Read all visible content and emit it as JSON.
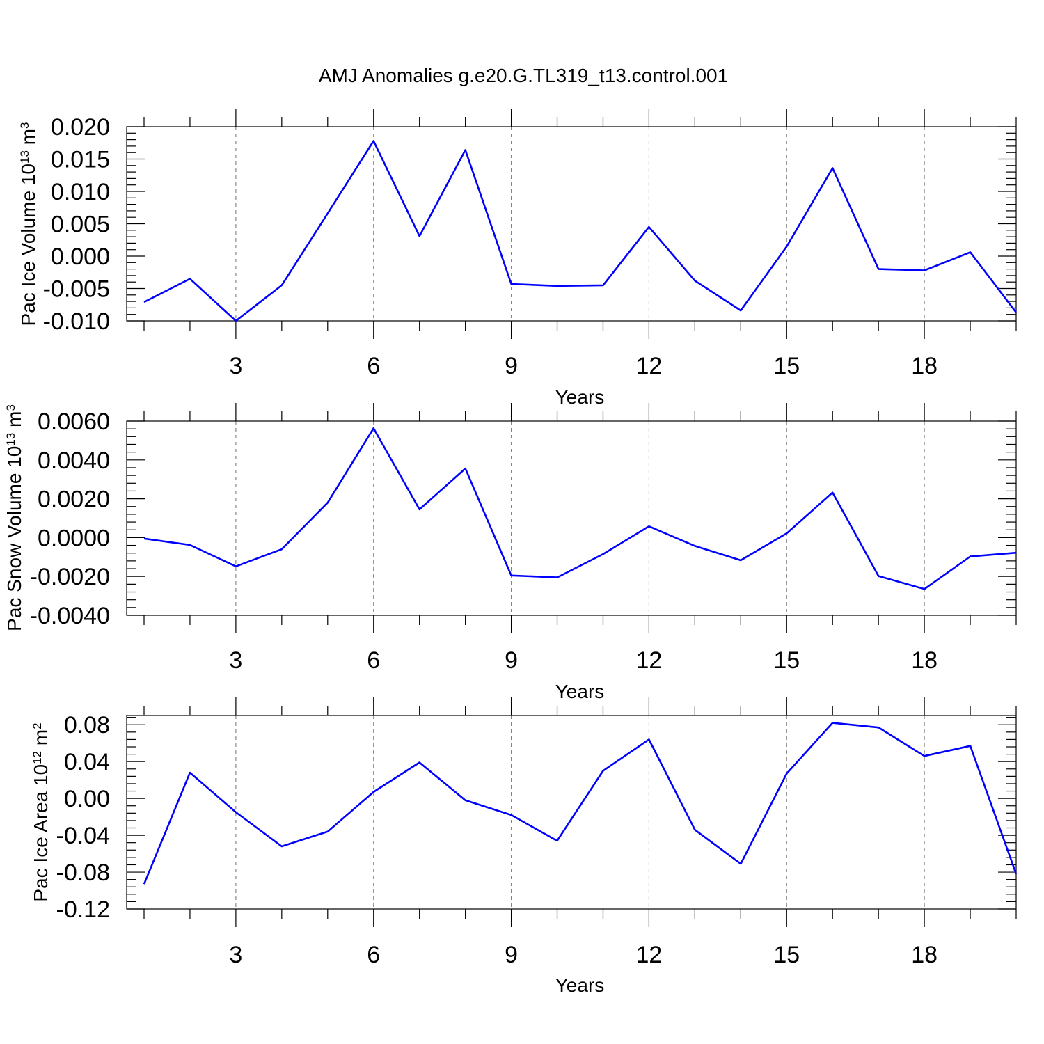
{
  "title": "AMJ Anomalies g.e20.G.TL319_t13.control.001",
  "series_color": "#0000ff",
  "chart_data": [
    {
      "type": "line",
      "title": "AMJ Anomalies g.e20.G.TL319_t13.control.001",
      "xlabel": "Years",
      "ylabel": {
        "base": "Pac Ice Volume 10",
        "sup": "13",
        "unit": " m",
        "unit_sup": "3"
      },
      "xlim": [
        1,
        20
      ],
      "ylim": [
        -0.01,
        0.02
      ],
      "xticks": [
        3,
        6,
        9,
        12,
        15,
        18
      ],
      "xtick_labels": [
        "3",
        "6",
        "9",
        "12",
        "15",
        "18"
      ],
      "yticks": [
        -0.01,
        -0.005,
        0.0,
        0.005,
        0.01,
        0.015,
        0.02
      ],
      "ytick_labels": [
        "-0.010",
        "-0.005",
        "0.000",
        "0.005",
        "0.010",
        "0.015",
        "0.020"
      ],
      "x": [
        1,
        2,
        3,
        4,
        5,
        6,
        7,
        8,
        9,
        10,
        11,
        12,
        13,
        14,
        15,
        16,
        17,
        18,
        19,
        20
      ],
      "values": [
        -0.0071,
        -0.0035,
        -0.01,
        -0.0045,
        0.0066,
        0.0178,
        0.0031,
        0.0164,
        -0.0043,
        -0.0046,
        -0.0045,
        0.0045,
        -0.0038,
        -0.0084,
        0.0015,
        0.0136,
        -0.002,
        -0.0022,
        0.0006,
        -0.0087
      ],
      "grid": "dashed vertical at major x ticks"
    },
    {
      "type": "line",
      "xlabel": "Years",
      "ylabel": {
        "base": "Pac Snow Volume 10",
        "sup": "13",
        "unit": " m",
        "unit_sup": "3"
      },
      "xlim": [
        1,
        20
      ],
      "ylim": [
        -0.004,
        0.006
      ],
      "xticks": [
        3,
        6,
        9,
        12,
        15,
        18
      ],
      "xtick_labels": [
        "3",
        "6",
        "9",
        "12",
        "15",
        "18"
      ],
      "yticks": [
        -0.004,
        -0.002,
        0.0,
        0.002,
        0.004,
        0.006
      ],
      "ytick_labels": [
        "-0.0040",
        "-0.0020",
        "0.0000",
        "0.0020",
        "0.0040",
        "0.0060"
      ],
      "x": [
        1,
        2,
        3,
        4,
        5,
        6,
        7,
        8,
        9,
        10,
        11,
        12,
        13,
        14,
        15,
        16,
        17,
        18,
        19,
        20
      ],
      "values": [
        -5e-05,
        -0.00038,
        -0.00148,
        -0.0006,
        0.0018,
        0.00563,
        0.00145,
        0.00356,
        -0.00195,
        -0.00205,
        -0.00085,
        0.00058,
        -0.00043,
        -0.00117,
        0.00022,
        0.00232,
        -0.00198,
        -0.00265,
        -0.00097,
        -0.00078
      ],
      "grid": "dashed vertical at major x ticks"
    },
    {
      "type": "line",
      "xlabel": "Years",
      "ylabel": {
        "base": "Pac Ice Area 10",
        "sup": "12",
        "unit": " m",
        "unit_sup": "2"
      },
      "xlim": [
        1,
        20
      ],
      "ylim": [
        -0.12,
        0.09
      ],
      "xticks": [
        3,
        6,
        9,
        12,
        15,
        18
      ],
      "xtick_labels": [
        "3",
        "6",
        "9",
        "12",
        "15",
        "18"
      ],
      "yticks": [
        -0.12,
        -0.08,
        -0.04,
        0.0,
        0.04,
        0.08
      ],
      "ytick_labels": [
        "-0.12",
        "-0.08",
        "-0.04",
        "0.00",
        "0.04",
        "0.08"
      ],
      "x": [
        1,
        2,
        3,
        4,
        5,
        6,
        7,
        8,
        9,
        10,
        11,
        12,
        13,
        14,
        15,
        16,
        17,
        18,
        19,
        20
      ],
      "values": [
        -0.093,
        0.028,
        -0.015,
        -0.052,
        -0.036,
        0.007,
        0.039,
        -0.002,
        -0.018,
        -0.046,
        0.03,
        0.064,
        -0.034,
        -0.071,
        0.027,
        0.082,
        0.077,
        0.046,
        0.057,
        -0.082
      ],
      "grid": "dashed vertical at major x ticks"
    }
  ]
}
